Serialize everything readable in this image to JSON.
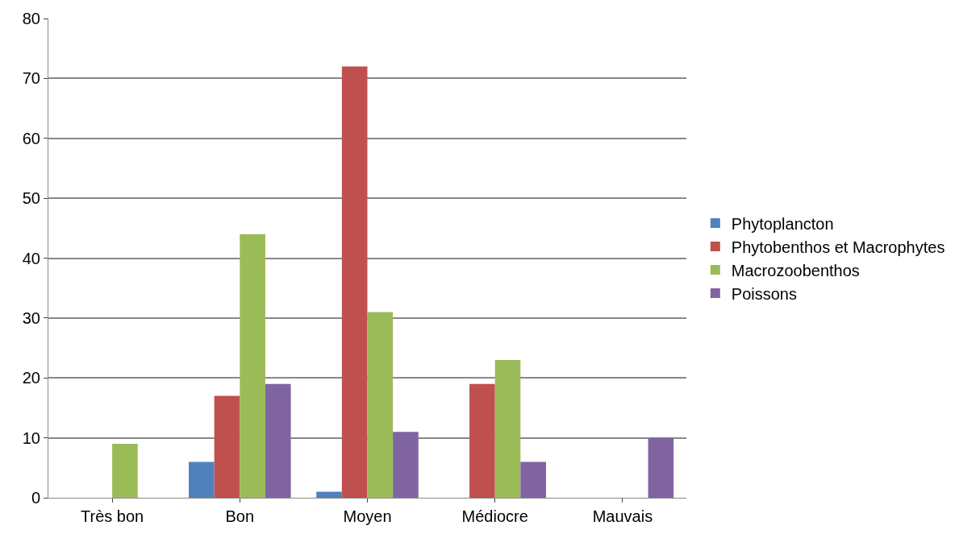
{
  "chart_data": {
    "type": "bar",
    "categories": [
      "Très bon",
      "Bon",
      "Moyen",
      "Médiocre",
      "Mauvais"
    ],
    "series": [
      {
        "name": "Phytoplancton",
        "color": "#4f81bd",
        "values": [
          0,
          6,
          1,
          0,
          0
        ]
      },
      {
        "name": "Phytobenthos et Macrophytes",
        "color": "#c0504d",
        "values": [
          0,
          17,
          72,
          19,
          0
        ]
      },
      {
        "name": "Macrozoobenthos",
        "color": "#9bbb59",
        "values": [
          9,
          44,
          31,
          23,
          0
        ]
      },
      {
        "name": "Poissons",
        "color": "#8064a2",
        "values": [
          0,
          19,
          11,
          6,
          10
        ]
      }
    ],
    "ylim": [
      0,
      80
    ],
    "yticks": [
      0,
      10,
      20,
      30,
      40,
      50,
      60,
      70,
      80
    ],
    "grid": "y",
    "legend": "right"
  }
}
